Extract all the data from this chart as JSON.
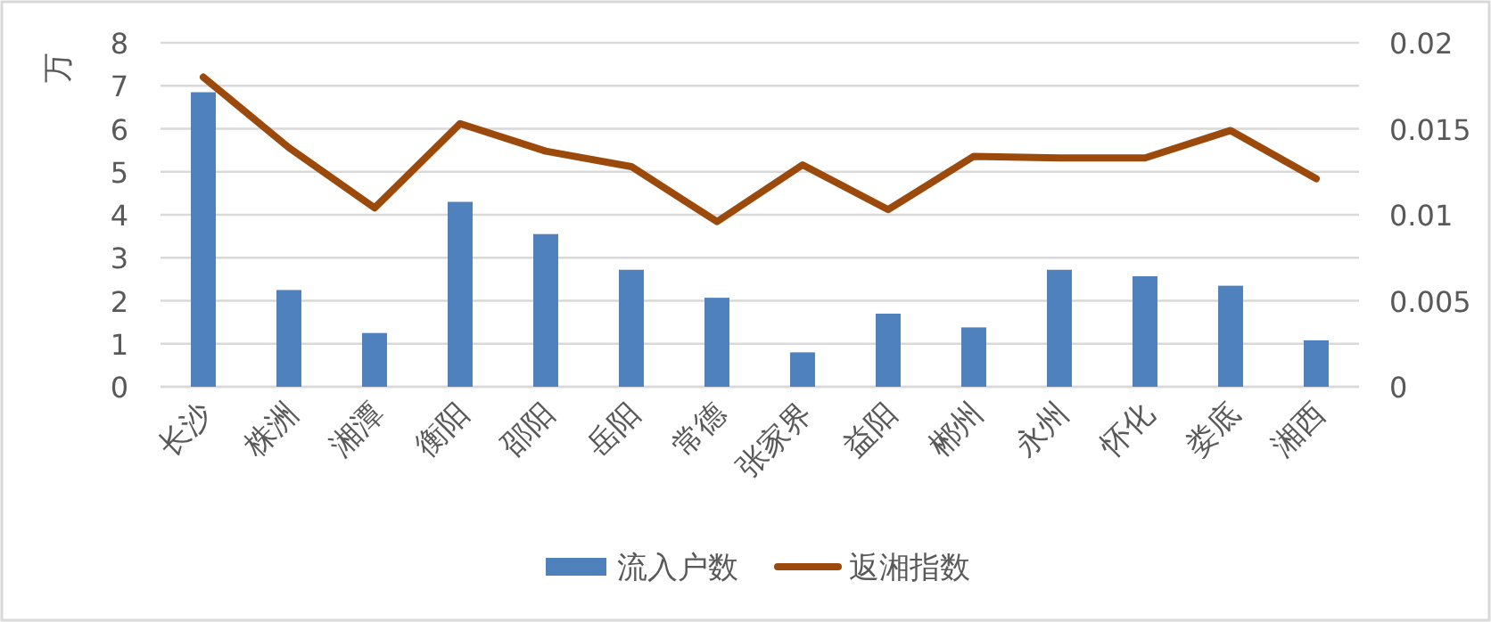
{
  "chart_data": {
    "type": "bar",
    "ylabel": "万",
    "categories": [
      "长沙",
      "株洲",
      "湘潭",
      "衡阳",
      "邵阳",
      "岳阳",
      "常德",
      "张家界",
      "益阳",
      "郴州",
      "永州",
      "怀化",
      "娄底",
      "湘西"
    ],
    "series": [
      {
        "name": "流入户数",
        "color": "#4f81bd",
        "values": [
          6.85,
          2.25,
          1.25,
          4.3,
          3.55,
          2.72,
          2.07,
          0.8,
          1.7,
          1.38,
          2.72,
          2.57,
          2.35,
          1.08
        ]
      },
      {
        "name": "返湘指数",
        "type": "line",
        "axis": "y2",
        "color": "#9c4a0c",
        "values": [
          0.018,
          0.0139,
          0.0104,
          0.0153,
          0.0137,
          0.0128,
          0.0096,
          0.0129,
          0.0103,
          0.0134,
          0.0133,
          0.0133,
          0.0149,
          0.0121
        ]
      }
    ],
    "ylim": [
      0,
      8
    ],
    "yticks": [
      0,
      1,
      2,
      3,
      4,
      5,
      6,
      7,
      8
    ],
    "y2lim": [
      0,
      0.02
    ],
    "y2ticks": [
      0,
      0.005,
      0.01,
      0.015,
      0.02
    ],
    "grid": "y",
    "legend": "bottom",
    "marker": "none"
  }
}
